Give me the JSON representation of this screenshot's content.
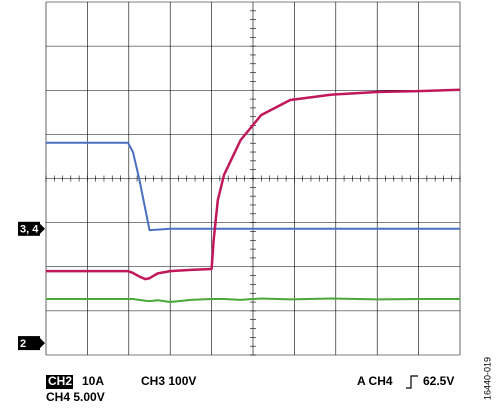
{
  "chart_data": {
    "type": "line",
    "xlim": [
      0,
      10
    ],
    "ylim": [
      0,
      8
    ],
    "grid": true,
    "x": [
      0,
      1,
      1.98,
      2.1,
      2.25,
      2.4,
      2.5,
      2.7,
      3,
      3.5,
      4,
      4.05,
      4.15,
      4.3,
      4.7,
      5.2,
      5.9,
      6.9,
      8,
      9,
      10
    ],
    "series": [
      {
        "color": "#4a6fc0",
        "values": [
          4.81,
          4.81,
          4.81,
          4.6,
          4.0,
          3.3,
          2.83,
          2.84,
          2.86,
          2.86,
          2.86,
          2.86,
          2.86,
          2.86,
          2.86,
          2.86,
          2.86,
          2.86,
          2.86,
          2.86,
          2.86
        ]
      },
      {
        "color": "#c0185a",
        "values": [
          1.9,
          1.9,
          1.9,
          1.86,
          1.78,
          1.72,
          1.74,
          1.85,
          1.9,
          1.93,
          1.95,
          2.61,
          3.51,
          4.08,
          4.87,
          5.44,
          5.78,
          5.9,
          5.96,
          5.98,
          6.01
        ]
      },
      {
        "color": "#4aa83a",
        "values": [
          1.27,
          1.27,
          1.27,
          1.27,
          1.25,
          1.23,
          1.22,
          1.24,
          1.2,
          1.25,
          1.27,
          1.27,
          1.27,
          1.27,
          1.25,
          1.28,
          1.26,
          1.28,
          1.26,
          1.27,
          1.27
        ]
      }
    ],
    "channel_markers": [
      {
        "label": "3, 4",
        "level": 2.86
      },
      {
        "label": "2",
        "level": 0.27
      }
    ],
    "settings": {
      "ch2": "CH2",
      "ch2_scale": "10A",
      "ch3": "CH3 100V",
      "trigger_source": "A  CH4",
      "trigger_level": "62.5V",
      "ch4": "CH4 5.00V"
    },
    "figure_id": "16440-019"
  }
}
